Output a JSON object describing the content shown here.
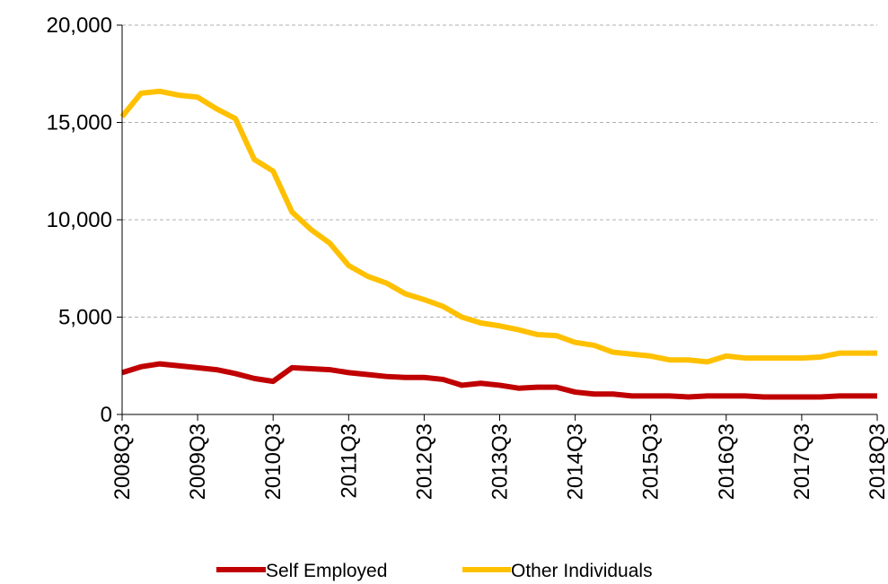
{
  "colors": {
    "self_employed": "#c00000",
    "other_individuals": "#ffc000",
    "grid": "#b0b0b0",
    "axis": "#000000"
  },
  "chart_data": {
    "type": "line",
    "title": "",
    "xlabel": "",
    "ylabel": "",
    "ylim": [
      0,
      20000
    ],
    "y_ticks": [
      0,
      5000,
      10000,
      15000,
      20000
    ],
    "y_tick_labels": [
      "0",
      "5,000",
      "10,000",
      "15,000",
      "20,000"
    ],
    "x_tick_labels": [
      "2008Q3",
      "2009Q3",
      "2010Q3",
      "2011Q3",
      "2012Q3",
      "2013Q3",
      "2014Q3",
      "2015Q3",
      "2016Q3",
      "2017Q3",
      "2018Q3"
    ],
    "grid": "horizontal dashed",
    "legend_position": "bottom",
    "x": [
      "2008Q3",
      "2008Q4",
      "2009Q1",
      "2009Q2",
      "2009Q3",
      "2009Q4",
      "2010Q1",
      "2010Q2",
      "2010Q3",
      "2010Q4",
      "2011Q1",
      "2011Q2",
      "2011Q3",
      "2011Q4",
      "2012Q1",
      "2012Q2",
      "2012Q3",
      "2012Q4",
      "2013Q1",
      "2013Q2",
      "2013Q3",
      "2013Q4",
      "2014Q1",
      "2014Q2",
      "2014Q3",
      "2014Q4",
      "2015Q1",
      "2015Q2",
      "2015Q3",
      "2015Q4",
      "2016Q1",
      "2016Q2",
      "2016Q3",
      "2016Q4",
      "2017Q1",
      "2017Q2",
      "2017Q3",
      "2017Q4",
      "2018Q1",
      "2018Q2",
      "2018Q3"
    ],
    "series": [
      {
        "name": "Self Employed",
        "values": [
          2150,
          2450,
          2600,
          2500,
          2400,
          2300,
          2100,
          1850,
          1700,
          2400,
          2350,
          2300,
          2150,
          2050,
          1950,
          1900,
          1900,
          1800,
          1500,
          1600,
          1500,
          1350,
          1400,
          1400,
          1150,
          1050,
          1050,
          950,
          950,
          950,
          900,
          950,
          950,
          950,
          900,
          900,
          900,
          900,
          950,
          950,
          950
        ]
      },
      {
        "name": "Other Individuals",
        "values": [
          15300,
          16500,
          16600,
          16400,
          16300,
          15700,
          15200,
          13100,
          12500,
          10400,
          9500,
          8800,
          7650,
          7100,
          6750,
          6200,
          5900,
          5550,
          5000,
          4700,
          4550,
          4350,
          4100,
          4050,
          3700,
          3550,
          3200,
          3100,
          3000,
          2800,
          2800,
          2700,
          3000,
          2900,
          2900,
          2900,
          2900,
          2950,
          3150,
          3150,
          3150
        ]
      }
    ]
  }
}
